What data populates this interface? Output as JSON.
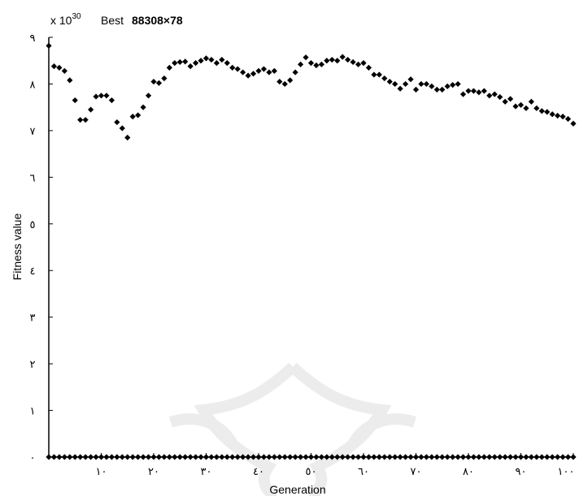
{
  "chart_data": {
    "type": "scatter",
    "title": "Best  88308×78",
    "exponent_label": "x 10",
    "exponent_power": "30",
    "title_prefix": "Best",
    "title_value": "88308×78",
    "xlabel": "Generation",
    "ylabel": "Fitness value",
    "xlim": [
      0,
      100
    ],
    "ylim": [
      0,
      9
    ],
    "x_ticks": [
      10,
      20,
      30,
      40,
      50,
      60,
      70,
      80,
      90,
      100
    ],
    "x_tick_labels": [
      "١٠",
      "٢٠",
      "٣٠",
      "٤٠",
      "٥٠",
      "٦٠",
      "٧٠",
      "٨٠",
      "٩٠",
      "١٠٠"
    ],
    "y_ticks": [
      0,
      1,
      2,
      3,
      4,
      5,
      6,
      7,
      8,
      9
    ],
    "y_tick_labels": [
      "٠",
      "١",
      "٢",
      "٣",
      "٤",
      "٥",
      "٦",
      "٧",
      "٨",
      "٩"
    ],
    "marker_color": "#000000",
    "series": [
      {
        "marker": "diamond",
        "x": [
          0,
          1,
          2,
          3,
          4,
          5,
          6,
          7,
          8,
          9,
          10,
          11,
          12,
          13,
          14,
          15,
          16,
          17,
          18,
          19,
          20,
          21,
          22,
          23,
          24,
          25,
          26,
          27,
          28,
          29,
          30,
          31,
          32,
          33,
          34,
          35,
          36,
          37,
          38,
          39,
          40,
          41,
          42,
          43,
          44,
          45,
          46,
          47,
          48,
          49,
          50,
          51,
          52,
          53,
          54,
          55,
          56,
          57,
          58,
          59,
          60,
          61,
          62,
          63,
          64,
          65,
          66,
          67,
          68,
          69,
          70,
          71,
          72,
          73,
          74,
          75,
          76,
          77,
          78,
          79,
          80,
          81,
          82,
          83,
          84,
          85,
          86,
          87,
          88,
          89,
          90,
          91,
          92,
          93,
          94,
          95,
          96,
          97,
          98,
          99,
          100
        ],
        "y": [
          8.82,
          8.38,
          8.35,
          8.28,
          8.08,
          7.65,
          7.23,
          7.23,
          7.45,
          7.73,
          7.75,
          7.75,
          7.65,
          7.18,
          7.05,
          6.85,
          7.3,
          7.33,
          7.5,
          7.75,
          8.05,
          8.02,
          8.12,
          8.35,
          8.45,
          8.47,
          8.48,
          8.38,
          8.45,
          8.5,
          8.55,
          8.52,
          8.45,
          8.52,
          8.45,
          8.35,
          8.32,
          8.25,
          8.18,
          8.22,
          8.28,
          8.32,
          8.25,
          8.28,
          8.05,
          8.0,
          8.08,
          8.25,
          8.42,
          8.57,
          8.45,
          8.4,
          8.42,
          8.5,
          8.52,
          8.5,
          8.58,
          8.52,
          8.47,
          8.42,
          8.45,
          8.35,
          8.2,
          8.2,
          8.12,
          8.05,
          8.0,
          7.9,
          8.0,
          8.1,
          7.88,
          8.0,
          8.0,
          7.95,
          7.88,
          7.88,
          7.95,
          7.98,
          8.0,
          7.78,
          7.85,
          7.85,
          7.82,
          7.85,
          7.75,
          7.78,
          7.72,
          7.62,
          7.68,
          7.52,
          7.55,
          7.48,
          7.62,
          7.48,
          7.42,
          7.4,
          7.35,
          7.32,
          7.3,
          7.25,
          7.15
        ]
      },
      {
        "marker": "diamond",
        "x": [
          0,
          1,
          2,
          3,
          4,
          5,
          6,
          7,
          8,
          9,
          10,
          11,
          12,
          13,
          14,
          15,
          16,
          17,
          18,
          19,
          20,
          21,
          22,
          23,
          24,
          25,
          26,
          27,
          28,
          29,
          30,
          31,
          32,
          33,
          34,
          35,
          36,
          37,
          38,
          39,
          40,
          41,
          42,
          43,
          44,
          45,
          46,
          47,
          48,
          49,
          50,
          51,
          52,
          53,
          54,
          55,
          56,
          57,
          58,
          59,
          60,
          61,
          62,
          63,
          64,
          65,
          66,
          67,
          68,
          69,
          70,
          71,
          72,
          73,
          74,
          75,
          76,
          77,
          78,
          79,
          80,
          81,
          82,
          83,
          84,
          85,
          86,
          87,
          88,
          89,
          90,
          91,
          92,
          93,
          94,
          95,
          96,
          97,
          98,
          99,
          100
        ],
        "y": [
          0,
          0,
          0,
          0,
          0,
          0,
          0,
          0,
          0,
          0,
          0,
          0,
          0,
          0,
          0,
          0,
          0,
          0,
          0,
          0,
          0,
          0,
          0,
          0,
          0,
          0,
          0,
          0,
          0,
          0,
          0,
          0,
          0,
          0,
          0,
          0,
          0,
          0,
          0,
          0,
          0,
          0,
          0,
          0,
          0,
          0,
          0,
          0,
          0,
          0,
          0,
          0,
          0,
          0,
          0,
          0,
          0,
          0,
          0,
          0,
          0,
          0,
          0,
          0,
          0,
          0,
          0,
          0,
          0,
          0,
          0,
          0,
          0,
          0,
          0,
          0,
          0,
          0,
          0,
          0,
          0,
          0,
          0,
          0,
          0,
          0,
          0,
          0,
          0,
          0,
          0,
          0,
          0,
          0,
          0,
          0,
          0,
          0,
          0,
          0,
          0
        ]
      }
    ]
  }
}
